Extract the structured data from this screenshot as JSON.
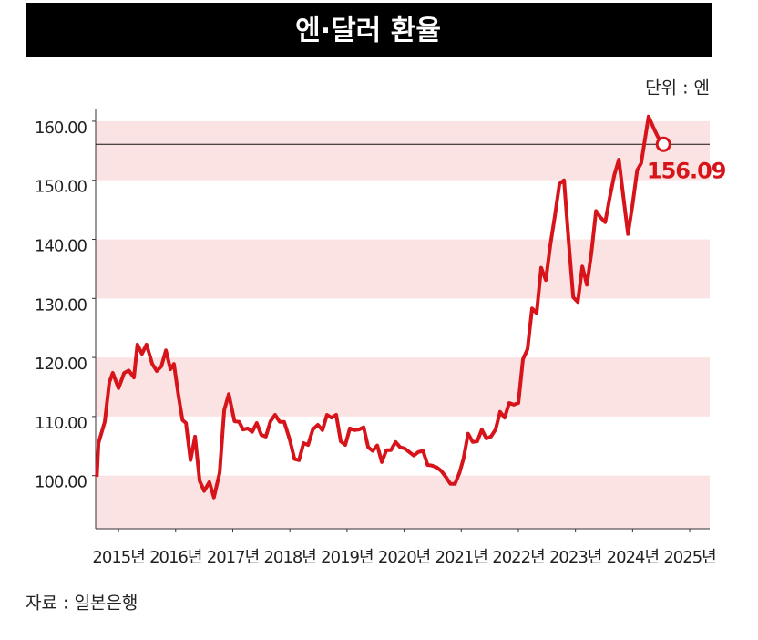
{
  "chart_data": {
    "type": "line",
    "title": "엔·달러 환율",
    "unit_label": "단위 : 엔",
    "source": "자료 : 일본은행",
    "series": [
      {
        "name": "엔·달러 환율",
        "color": "#d7141a",
        "x": [
          2014.62,
          2014.65,
          2014.76,
          2014.84,
          2014.9,
          2015.0,
          2015.1,
          2015.18,
          2015.27,
          2015.33,
          2015.41,
          2015.49,
          2015.59,
          2015.67,
          2015.75,
          2015.83,
          2015.91,
          2015.97,
          2016.05,
          2016.12,
          2016.18,
          2016.26,
          2016.34,
          2016.42,
          2016.5,
          2016.59,
          2016.67,
          2016.77,
          2016.85,
          2016.93,
          2017.03,
          2017.11,
          2017.18,
          2017.26,
          2017.34,
          2017.42,
          2017.5,
          2017.58,
          2017.66,
          2017.74,
          2017.82,
          2017.9,
          2018.0,
          2018.08,
          2018.16,
          2018.24,
          2018.32,
          2018.4,
          2018.49,
          2018.57,
          2018.65,
          2018.73,
          2018.81,
          2018.89,
          2018.97,
          2019.05,
          2019.13,
          2019.21,
          2019.29,
          2019.37,
          2019.45,
          2019.53,
          2019.61,
          2019.69,
          2019.77,
          2019.85,
          2019.93,
          2020.01,
          2020.09,
          2020.17,
          2020.25,
          2020.33,
          2020.41,
          2020.49,
          2020.57,
          2020.65,
          2020.73,
          2020.81,
          2020.89,
          2020.97,
          2021.04,
          2021.12,
          2021.2,
          2021.28,
          2021.36,
          2021.44,
          2021.52,
          2021.6,
          2021.68,
          2021.76,
          2021.84,
          2021.92,
          2022.0,
          2022.08,
          2022.16,
          2022.24,
          2022.32,
          2022.4,
          2022.48,
          2022.56,
          2022.64,
          2022.72,
          2022.8,
          2022.88,
          2022.96,
          2023.04,
          2023.12,
          2023.2,
          2023.28,
          2023.36,
          2023.44,
          2023.52,
          2023.6,
          2023.68,
          2023.76,
          2023.84,
          2023.92,
          2024.0,
          2024.08,
          2024.15,
          2024.23,
          2024.28,
          2024.38,
          2024.44,
          2024.54
        ],
        "values": [
          99.8,
          105.5,
          109.1,
          115.8,
          117.4,
          114.8,
          117.4,
          117.8,
          116.6,
          122.2,
          120.6,
          122.2,
          118.9,
          117.7,
          118.5,
          121.2,
          118.0,
          118.9,
          113.5,
          109.4,
          108.9,
          102.6,
          106.6,
          99.1,
          97.4,
          98.9,
          96.3,
          100.5,
          111.1,
          113.8,
          109.2,
          109.1,
          107.8,
          108.0,
          107.4,
          108.9,
          106.9,
          106.6,
          109.2,
          110.3,
          109.1,
          109.1,
          106.0,
          102.8,
          102.6,
          105.5,
          105.2,
          107.8,
          108.6,
          107.7,
          110.3,
          109.8,
          110.3,
          105.8,
          105.2,
          108.0,
          107.7,
          107.8,
          108.2,
          104.8,
          104.2,
          105.1,
          102.3,
          104.3,
          104.3,
          105.7,
          104.8,
          104.6,
          104.0,
          103.4,
          104.0,
          104.2,
          101.8,
          101.7,
          101.4,
          100.8,
          99.8,
          98.6,
          98.6,
          100.5,
          102.9,
          107.1,
          105.7,
          105.8,
          107.8,
          106.3,
          106.6,
          107.8,
          110.8,
          109.8,
          112.3,
          112.0,
          112.3,
          119.7,
          121.4,
          128.3,
          127.5,
          135.2,
          133.1,
          139.1,
          144.0,
          149.4,
          150.0,
          139.8,
          130.2,
          129.4,
          135.4,
          132.3,
          137.8,
          144.8,
          143.7,
          142.9,
          147.1,
          150.9,
          153.5,
          147.1,
          140.9,
          146.0,
          151.7,
          152.9,
          157.8,
          160.8,
          158.6,
          157.4,
          156.09
        ]
      }
    ],
    "xlim": [
      2014.6,
      2025.35
    ],
    "xticks": [
      {
        "value": 2015,
        "label": "2015년"
      },
      {
        "value": 2016,
        "label": "2016년"
      },
      {
        "value": 2017,
        "label": "2017년"
      },
      {
        "value": 2018,
        "label": "2018년"
      },
      {
        "value": 2019,
        "label": "2019년"
      },
      {
        "value": 2020,
        "label": "2020년"
      },
      {
        "value": 2021,
        "label": "2021년"
      },
      {
        "value": 2022,
        "label": "2022년"
      },
      {
        "value": 2023,
        "label": "2023년"
      },
      {
        "value": 2024,
        "label": "2024년"
      },
      {
        "value": 2025,
        "label": "2025년"
      }
    ],
    "ylim": [
      91,
      162
    ],
    "yticks": [
      {
        "value": 100,
        "label": "100.00"
      },
      {
        "value": 110,
        "label": "110.00"
      },
      {
        "value": 120,
        "label": "120.00"
      },
      {
        "value": 130,
        "label": "130.00"
      },
      {
        "value": 140,
        "label": "140.00"
      },
      {
        "value": 150,
        "label": "150.00"
      },
      {
        "value": 160,
        "label": "160.00"
      }
    ],
    "band_color": "#fce3e3"
  }
}
